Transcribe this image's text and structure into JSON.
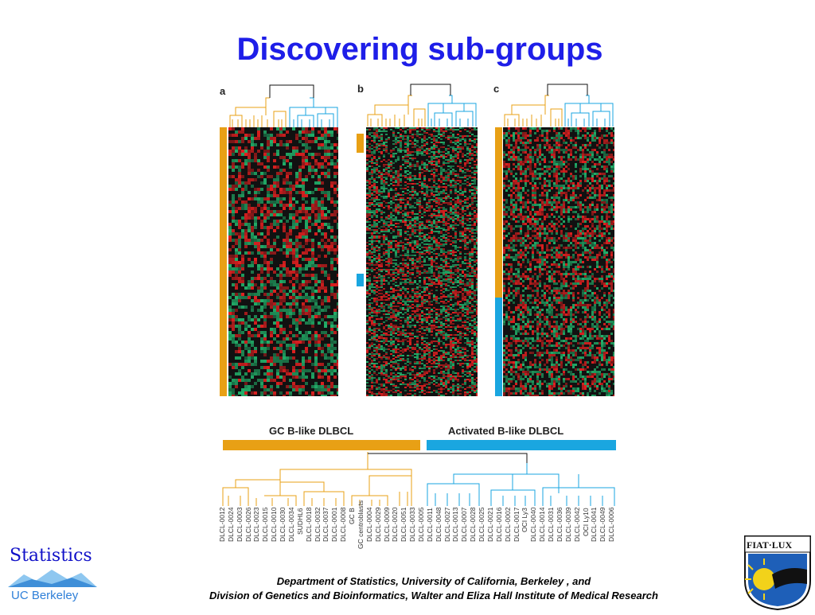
{
  "title": "Discovering sub-groups",
  "panels": [
    "a",
    "b",
    "c"
  ],
  "groups": {
    "gc": {
      "label": "GC B-like DLBCL",
      "color": "#e8a015"
    },
    "activated": {
      "label": "Activated B-like DLBCL",
      "color": "#1aa6e0"
    }
  },
  "colors": {
    "red": "#e02020",
    "green": "#22b06a",
    "black": "#111111",
    "title": "#1e1ee8"
  },
  "samples": [
    "DLCL-0012",
    "DLCL-0024",
    "DLCL-0003",
    "DLCL-0026",
    "DLCL-0023",
    "DLCL-0015",
    "DLCL-0010",
    "DLCL-0030",
    "DLCL-0034",
    "SUDHL6",
    "DLCL-0018",
    "DLCL-0032",
    "DLCL-0037",
    "DLCL-0001",
    "DLCL-0008",
    "GC B",
    "GC centroblasts",
    "DLCL-0004",
    "DLCL-0029",
    "DLCL-0009",
    "DLCL-0020",
    "DLCL-0051",
    "DLCL-0033",
    "DLCL-0005",
    "DLCL-0011",
    "DLCL-0048",
    "DLCL-0027",
    "DLCL-0013",
    "DLCL-0007",
    "DLCL-0028",
    "DLCL-0025",
    "DLCL-0021",
    "DLCL-0016",
    "DLCL-0002",
    "DLCL-0017",
    "OCI Ly3",
    "DLCL-0040",
    "DLCL-0014",
    "DLCL-0031",
    "DLCL-0036",
    "DLCL-0039",
    "DLCL-0042",
    "OCI Ly10",
    "DLCL-0041",
    "DLCL-0049",
    "DLCL-0006"
  ],
  "footer": {
    "line1": "Department of Statistics, University of California, Berkeley , and",
    "line2": "Division of Genetics and Bioinformatics, Walter and Eliza Hall Institute of Medical Research"
  },
  "logos": {
    "left_text": "Statistics",
    "left_sub": "UC Berkeley",
    "right_text": "FIAT·LUX"
  }
}
